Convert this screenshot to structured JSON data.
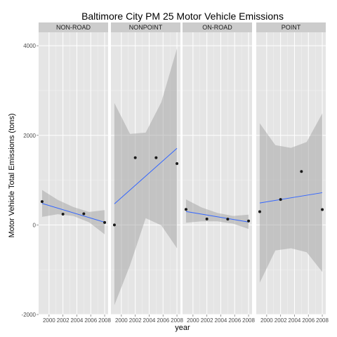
{
  "chart_data": {
    "type": "scatter",
    "title": "Baltimore City PM 25 Motor Vehicle Emissions",
    "xlabel": "year",
    "ylabel": "Motor Vehicle Total Emissions (tons)",
    "xlim": [
      1998.5,
      2008.5
    ],
    "ylim": [
      -2000,
      4300
    ],
    "x_ticks": [
      2000,
      2002,
      2004,
      2006,
      2008
    ],
    "x_tick_labels": [
      "2000",
      "2002",
      "2004",
      "2006",
      "2008"
    ],
    "y_ticks": [
      -2000,
      0,
      2000,
      4000
    ],
    "y_tick_labels": [
      "-2000",
      "0",
      "2000",
      "4000"
    ],
    "grid": true,
    "panels": [
      {
        "label": "NON-ROAD",
        "points": [
          {
            "x": 1999,
            "y": 522
          },
          {
            "x": 2002,
            "y": 241
          },
          {
            "x": 2005,
            "y": 248
          },
          {
            "x": 2008,
            "y": 55
          }
        ],
        "fit": {
          "x": [
            1999,
            2008
          ],
          "y": [
            480,
            60
          ]
        },
        "band": {
          "x": [
            1999,
            2001.25,
            2003.5,
            2005.75,
            2008
          ],
          "upper": [
            780,
            560,
            400,
            290,
            330
          ],
          "lower": [
            180,
            240,
            200,
            60,
            -210
          ]
        }
      },
      {
        "label": "NONPOINT",
        "points": [
          {
            "x": 1999,
            "y": 0
          },
          {
            "x": 2002,
            "y": 1500
          },
          {
            "x": 2005,
            "y": 1500
          },
          {
            "x": 2008,
            "y": 1370
          }
        ],
        "fit": {
          "x": [
            1999,
            2008
          ],
          "y": [
            470,
            1710
          ]
        },
        "band": {
          "x": [
            1999,
            2001.25,
            2003.5,
            2005.75,
            2008
          ],
          "upper": [
            2720,
            2030,
            2060,
            2740,
            3940
          ],
          "lower": [
            -1790,
            -900,
            150,
            -10,
            -520
          ]
        }
      },
      {
        "label": "ON-ROAD",
        "points": [
          {
            "x": 1999,
            "y": 347
          },
          {
            "x": 2002,
            "y": 134
          },
          {
            "x": 2005,
            "y": 130
          },
          {
            "x": 2008,
            "y": 88
          }
        ],
        "fit": {
          "x": [
            1999,
            2008
          ],
          "y": [
            300,
            65
          ]
        },
        "band": {
          "x": [
            1999,
            2001.25,
            2003.5,
            2005.75,
            2008
          ],
          "upper": [
            570,
            390,
            270,
            200,
            230
          ],
          "lower": [
            50,
            80,
            80,
            30,
            -90
          ]
        }
      },
      {
        "label": "POINT",
        "points": [
          {
            "x": 1999,
            "y": 296
          },
          {
            "x": 2002,
            "y": 569
          },
          {
            "x": 2005,
            "y": 1194
          },
          {
            "x": 2008,
            "y": 343
          }
        ],
        "fit": {
          "x": [
            1999,
            2008
          ],
          "y": [
            490,
            720
          ]
        },
        "band": {
          "x": [
            1999,
            2001.25,
            2003.5,
            2005.75,
            2008
          ],
          "upper": [
            2270,
            1780,
            1720,
            1850,
            2490
          ],
          "lower": [
            -1290,
            -570,
            -520,
            -610,
            -1050
          ]
        }
      }
    ],
    "colors": {
      "panel_background": "#e5e5e5",
      "strip_background": "#cccccc",
      "grid_major": "#ffffff",
      "grid_minor": "#f2f2f2",
      "fit_line": "#3366ff",
      "confidence_band": "#999999",
      "points": "#1a1a1a"
    }
  }
}
